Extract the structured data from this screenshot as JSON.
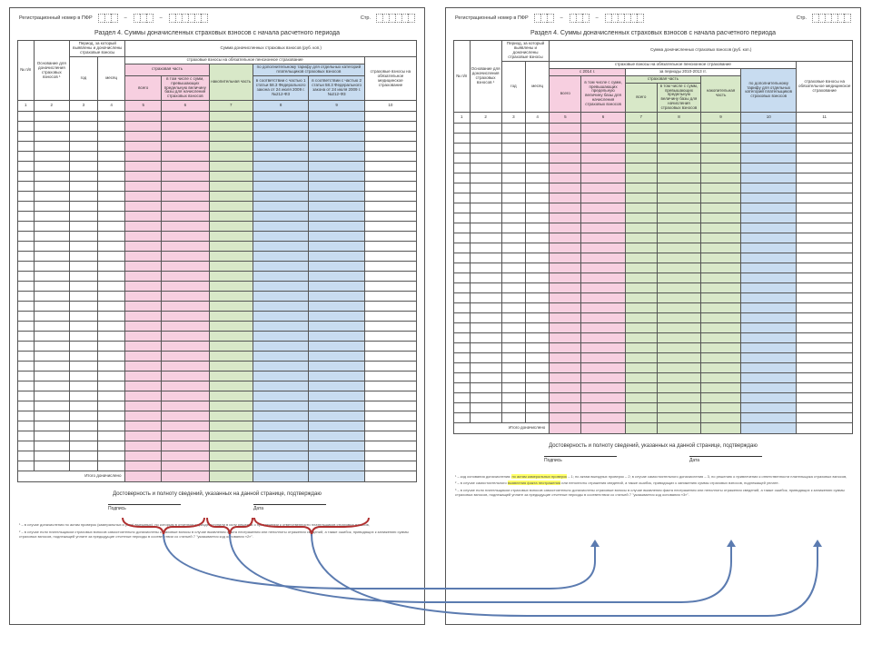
{
  "header": {
    "regLabel": "Регистрационный номер в ПФР",
    "pageLabel": "Стр."
  },
  "sectionTitle": "Раздел 4. Суммы доначисленных страховых взносов с начала расчетного периода",
  "left": {
    "cols": {
      "num": "№ п/п",
      "basis": "Основание для доначисления страховых взносов ¹",
      "period": "Период, за который выявлены и доначислены страховые взносы",
      "year": "год",
      "month": "месяц",
      "sum": "Сумма доначисленных страховых взносов (руб. коп.)",
      "pens": "страховые взносы на обязательное пенсионное страхование",
      "ins": "страховая часть",
      "total": "всего",
      "over": "в том числе с сумм, превышающих предельную величину базы для начисления страховых взносов",
      "acc": "накопительная часть",
      "addTariff": "по дополнительному тарифу для отдельных категорий плательщиков страховых взносов",
      "p1": "в соответствии с частью 1 статьи 58.3 Федерального закона от 24 июля 2009 г. №212-ФЗ",
      "p2": "в соответствии с частью 2 статьи 58.3 Федерального закона от 24 июля 2009 г. №212-ФЗ",
      "med": "страховые взносы на обязательное медицинское страхование"
    },
    "nums": [
      "1",
      "2",
      "3",
      "4",
      "5",
      "6",
      "7",
      "8",
      "9",
      "10"
    ],
    "total": "Итого доначислено"
  },
  "right": {
    "cols": {
      "num": "№ п/п",
      "basis": "Основание для доначисления страховых взносов ¹",
      "period": "Период, за который выявлены и доначислены страховые взносы",
      "year": "год",
      "month": "месяц",
      "sum": "Сумма доначисленных страховых взносов (руб. коп.)",
      "pens": "страховые взносы на обязательное пенсионное страхование",
      "from2014": "с 2014 г.",
      "for2010": "за периоды 2010-2013 гг.",
      "ins": "страховая часть",
      "total": "всего",
      "over": "в том числе с сумм, превышающих предельную величину базы для начисления страховых взносов",
      "acc": "накопительная часть",
      "addTariff": "по дополнительному тарифу для отдельных категорий плательщиков страховых взносов",
      "med": "страховые взносы на обязательное медицинское страхование"
    },
    "nums": [
      "1",
      "2",
      "3",
      "4",
      "5",
      "6",
      "7",
      "8",
      "9",
      "10",
      "11"
    ],
    "total": "Итого доначислено"
  },
  "conf": "Достоверность и полноту сведений, указанных на данной странице, подтверждаю",
  "sig": {
    "s": "Подпись",
    "d": "Дата"
  },
  "foot1": "¹ – в случае доначисления по актам проверок (камеральных и (или) выездных), по которым в отчетном периоде вступили в силу решения о привлечении к ответственности плательщиков страховых взносов,",
  "foot2": "² – в случае если плательщиком страховых взносов самостоятельно доначислены страховые взносы в случае выявления факта неотражения или неполноты отражения сведений, а также ошибок, приводящих к занижению суммы страховых взносов, подлежащей уплате за предыдущие отчетные периоды в соответствии со статьей 7 \"указывается код основания «2»\".",
  "footR1": "¹ – код основания доначисления: по актам камеральных проверок – 1; по актам выездных проверок – 2; в случае самостоятельного доначисления – 3, по решению о привлечении к ответственности плательщика страховых взносов,",
  "footR2": "² – в случае самостоятельного выявления факта неотражения или неполноты отражения сведений, а также ошибок, приводящих к занижению суммы страховых взносов, подлежащей уплате.",
  "footR3": "³ – в случае если плательщиком страховых взносов самостоятельно доначислены страховые взносы в случае выявления факта неотражения или неполноты отражения сведений, а также ошибок, приводящих к занижению суммы страховых взносов, подлежащей уплате за предыдущие отчетные периоды в соответствии со статьей 7 \"указывается код основания «3»\".",
  "hl1": "по актам камеральных проверок",
  "hl2": "выявления факта неотражения",
  "braceColor": "#b03030",
  "arrowColor": "#5b7bb0"
}
